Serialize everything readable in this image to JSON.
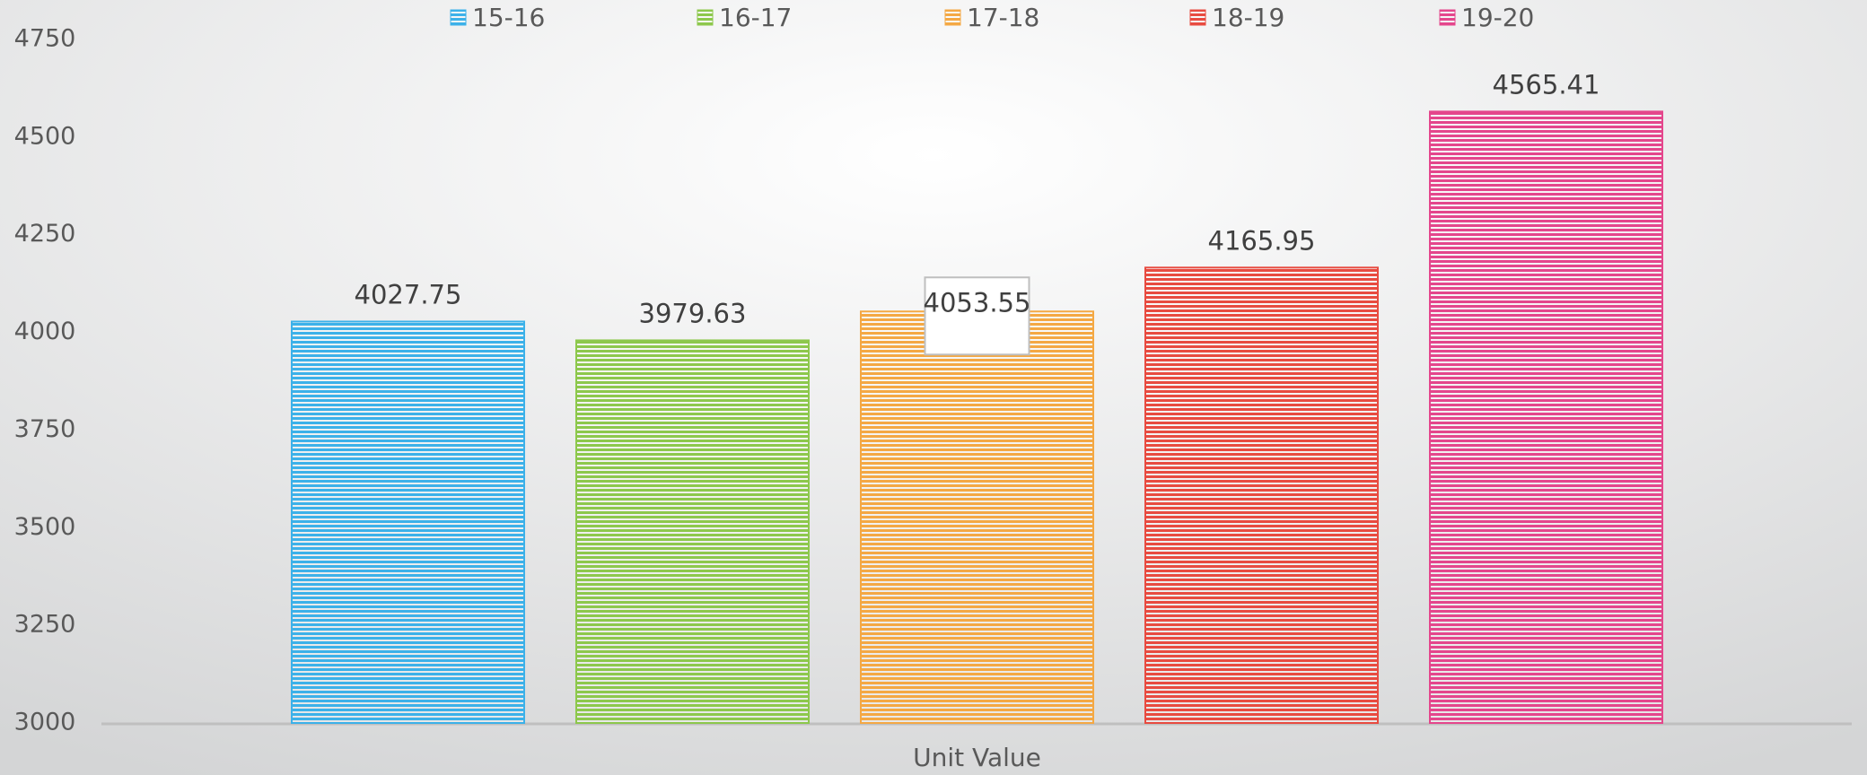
{
  "chart_data": {
    "type": "bar",
    "categories": [
      "Unit Value"
    ],
    "series": [
      {
        "name": "15-16",
        "color": "#3cb1e9",
        "values": [
          4027.75
        ]
      },
      {
        "name": "16-17",
        "color": "#8dc84c",
        "values": [
          3979.63
        ]
      },
      {
        "name": "17-18",
        "color": "#f4a844",
        "values": [
          4053.55
        ]
      },
      {
        "name": "18-19",
        "color": "#e84b40",
        "values": [
          4165.95
        ]
      },
      {
        "name": "19-20",
        "color": "#e4468c",
        "values": [
          4565.41
        ]
      }
    ],
    "ylim": [
      3000,
      4750
    ],
    "yticks": [
      3000,
      3250,
      3500,
      3750,
      4000,
      4250,
      4500,
      4750
    ],
    "legend": "top",
    "grid": false
  }
}
